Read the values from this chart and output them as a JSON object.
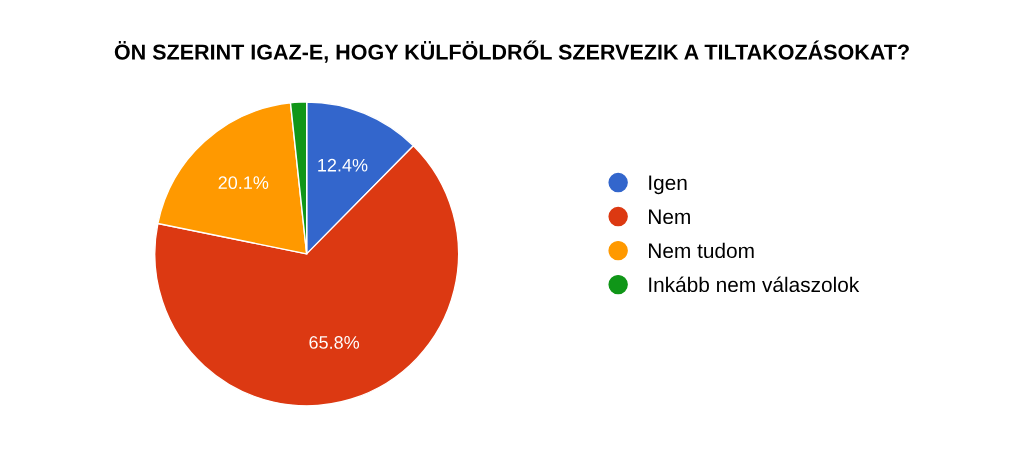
{
  "chart_data": {
    "type": "pie",
    "title": "ÖN SZERINT IGAZ-E, HOGY KÜLFÖLDRŐL SZERVEZIK A TILTAKOZÁSOKAT?",
    "categories": [
      "Igen",
      "Nem",
      "Nem tudom",
      "Inkább nem válaszolok"
    ],
    "values": [
      12.4,
      65.8,
      20.1,
      1.7
    ],
    "value_labels": [
      "12.4%",
      "65.8%",
      "20.1%",
      null
    ],
    "colors": [
      "#3366cc",
      "#dc3912",
      "#ff9900",
      "#109618"
    ],
    "legend": "right"
  }
}
